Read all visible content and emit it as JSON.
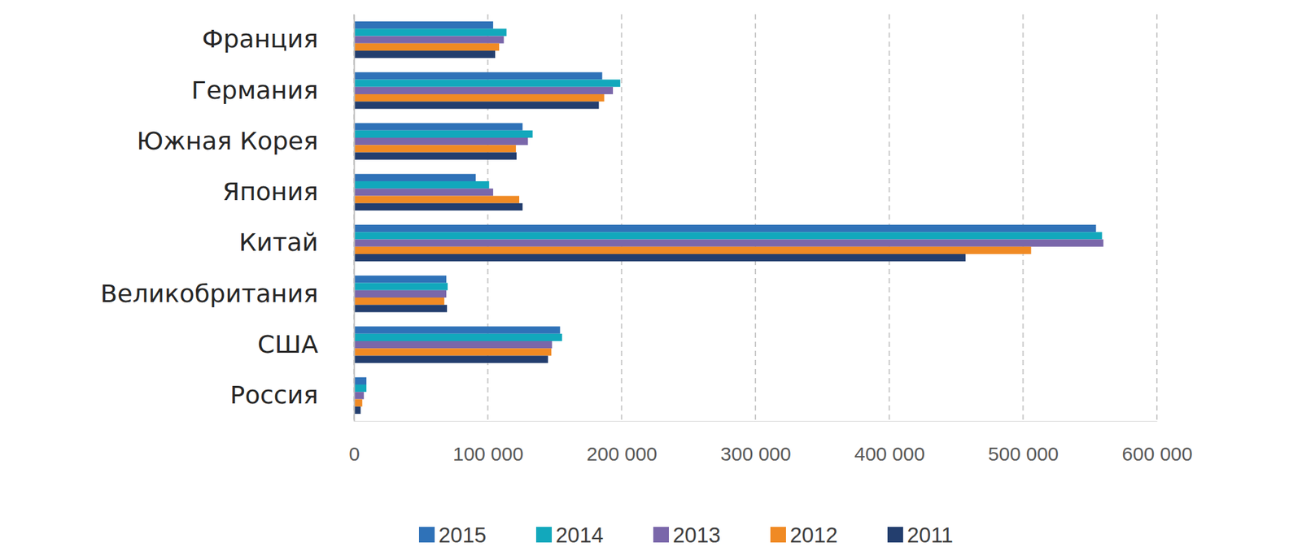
{
  "chart_data": {
    "type": "bar",
    "orientation": "horizontal",
    "grid": true,
    "legend": "bottom",
    "categories": [
      "Франция",
      "Германия",
      "Южная Корея",
      "Япония",
      "Китай",
      "Великобритания",
      "США",
      "Россия"
    ],
    "series": [
      {
        "name": "2015",
        "color": "#2f72b8",
        "values": [
          104000,
          185500,
          126000,
          91000,
          554500,
          69000,
          154000,
          9300
        ]
      },
      {
        "name": "2014",
        "color": "#12a8bc",
        "values": [
          114000,
          199000,
          133500,
          101000,
          559000,
          70000,
          155500,
          9300
        ]
      },
      {
        "name": "2013",
        "color": "#7a67aa",
        "values": [
          112000,
          193500,
          130000,
          104000,
          560000,
          69000,
          148000,
          7400
        ]
      },
      {
        "name": "2012",
        "color": "#f08a24",
        "values": [
          108500,
          187000,
          121000,
          123500,
          506000,
          67500,
          147500,
          6200
        ]
      },
      {
        "name": "2011",
        "color": "#233e6e",
        "values": [
          105500,
          183000,
          121500,
          126000,
          457000,
          69500,
          145000,
          5000
        ]
      }
    ],
    "xlim": [
      0,
      600000
    ],
    "xticks": [
      0,
      {
        "value": 100000,
        "label": "100 000"
      },
      {
        "value": 200000,
        "label": "200 000"
      },
      {
        "value": 300000,
        "label": "300 000"
      },
      {
        "value": 400000,
        "label": "400 000"
      },
      {
        "value": 500000,
        "label": "500 000"
      },
      {
        "value": 600000,
        "label": "600 000"
      }
    ]
  }
}
